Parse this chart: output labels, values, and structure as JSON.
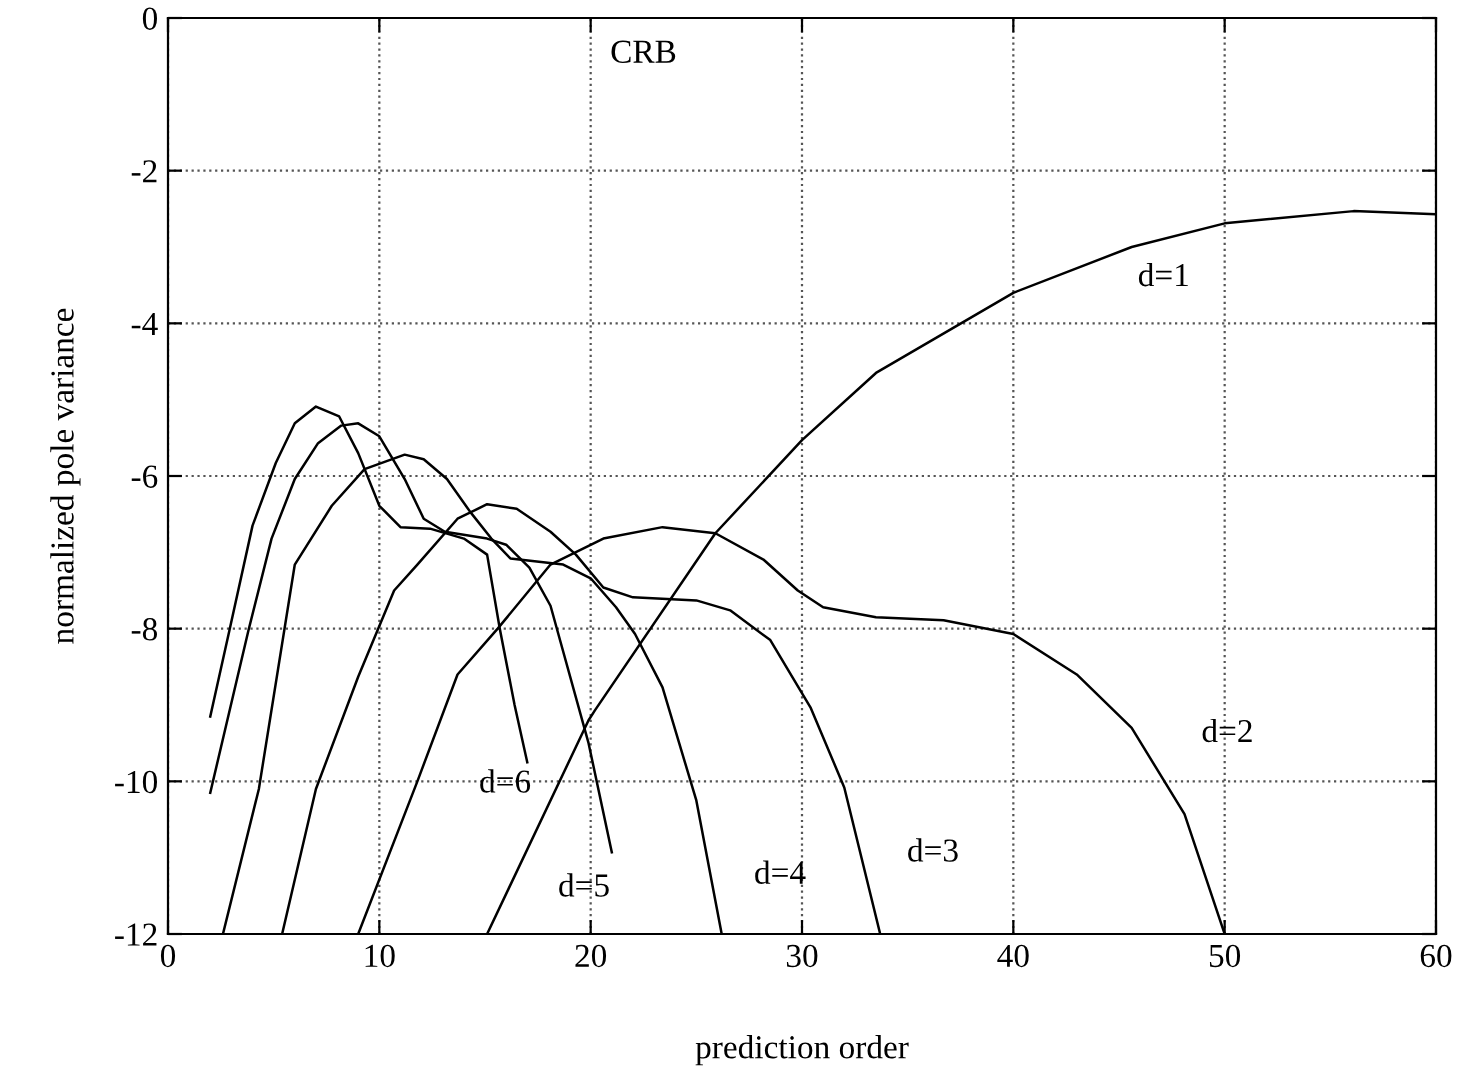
{
  "chart_data": {
    "type": "line",
    "xlabel": "prediction order",
    "ylabel": "normalized pole variance",
    "xlim": [
      0,
      60
    ],
    "ylim": [
      -12,
      0
    ],
    "xticks": [
      0,
      10,
      20,
      30,
      40,
      50,
      60
    ],
    "yticks": [
      -12,
      -10,
      -8,
      -6,
      -4,
      -2,
      0
    ],
    "grid": true,
    "line_style": "solid",
    "series": [
      {
        "name": "d=1",
        "color": "#000000",
        "x": [
          15.1,
          19.9,
          20.2,
          25.9,
          30,
          33.5,
          40,
          45.6,
          50,
          56.1,
          60
        ],
        "values": [
          -12,
          -9.2,
          -9.07,
          -6.75,
          -5.53,
          -4.65,
          -3.6,
          -3.0,
          -2.69,
          -2.53,
          -2.57
        ]
      },
      {
        "name": "d=2",
        "color": "#000000",
        "x": [
          9,
          11.8,
          13.7,
          15.6,
          18.1,
          20.6,
          23.4,
          25.9,
          28.2,
          29.8,
          31,
          33.5,
          36.7,
          40,
          43,
          45.6,
          48.1,
          50
        ],
        "values": [
          -12,
          -10,
          -8.6,
          -8.0,
          -7.16,
          -6.82,
          -6.67,
          -6.75,
          -7.1,
          -7.5,
          -7.72,
          -7.85,
          -7.89,
          -8.07,
          -8.6,
          -9.3,
          -10.43,
          -12
        ]
      },
      {
        "name": "d=3",
        "color": "#000000",
        "x": [
          5.4,
          7,
          9,
          10.7,
          11.8,
          13.7,
          15.1,
          16.5,
          18.1,
          19.3,
          20.6,
          22,
          25,
          26.6,
          28.5,
          30.4,
          32,
          33.7
        ],
        "values": [
          -12,
          -10.1,
          -8.63,
          -7.5,
          -7.16,
          -6.56,
          -6.37,
          -6.43,
          -6.73,
          -7.03,
          -7.46,
          -7.59,
          -7.63,
          -7.76,
          -8.15,
          -9.03,
          -10.08,
          -12
        ]
      },
      {
        "name": "d=4",
        "color": "#000000",
        "x": [
          2.6,
          4.3,
          6,
          7.75,
          9.3,
          11.2,
          12.1,
          13.2,
          14.3,
          15.3,
          16.2,
          18.7,
          20,
          21.2,
          22.1,
          23.4,
          25,
          26.2
        ],
        "values": [
          -12,
          -10.1,
          -7.16,
          -6.39,
          -5.91,
          -5.72,
          -5.78,
          -6.04,
          -6.47,
          -6.82,
          -7.08,
          -7.16,
          -7.34,
          -7.72,
          -8.07,
          -8.77,
          -10.25,
          -12
        ]
      },
      {
        "name": "d=5",
        "color": "#000000",
        "x": [
          2,
          3.8,
          4.9,
          6,
          7.1,
          8.2,
          9,
          10,
          11.2,
          12.1,
          13.1,
          15.1,
          16,
          17.1,
          18.1,
          19.9,
          21
        ],
        "values": [
          -10.15,
          -8.03,
          -6.82,
          -6.04,
          -5.57,
          -5.34,
          -5.31,
          -5.48,
          -6.04,
          -6.56,
          -6.73,
          -6.82,
          -6.9,
          -7.2,
          -7.7,
          -9.5,
          -10.93
        ]
      },
      {
        "name": "d=6",
        "color": "#000000",
        "x": [
          2,
          2.9,
          4,
          5.1,
          6,
          7,
          8.1,
          9,
          10,
          11,
          12.4,
          14,
          15.1,
          15.7,
          16.4,
          17
        ],
        "values": [
          -9.15,
          -8.03,
          -6.65,
          -5.83,
          -5.31,
          -5.09,
          -5.22,
          -5.7,
          -6.39,
          -6.67,
          -6.69,
          -6.82,
          -7.03,
          -8.0,
          -9.0,
          -9.75
        ]
      }
    ],
    "annotations": [
      "CRB"
    ]
  }
}
